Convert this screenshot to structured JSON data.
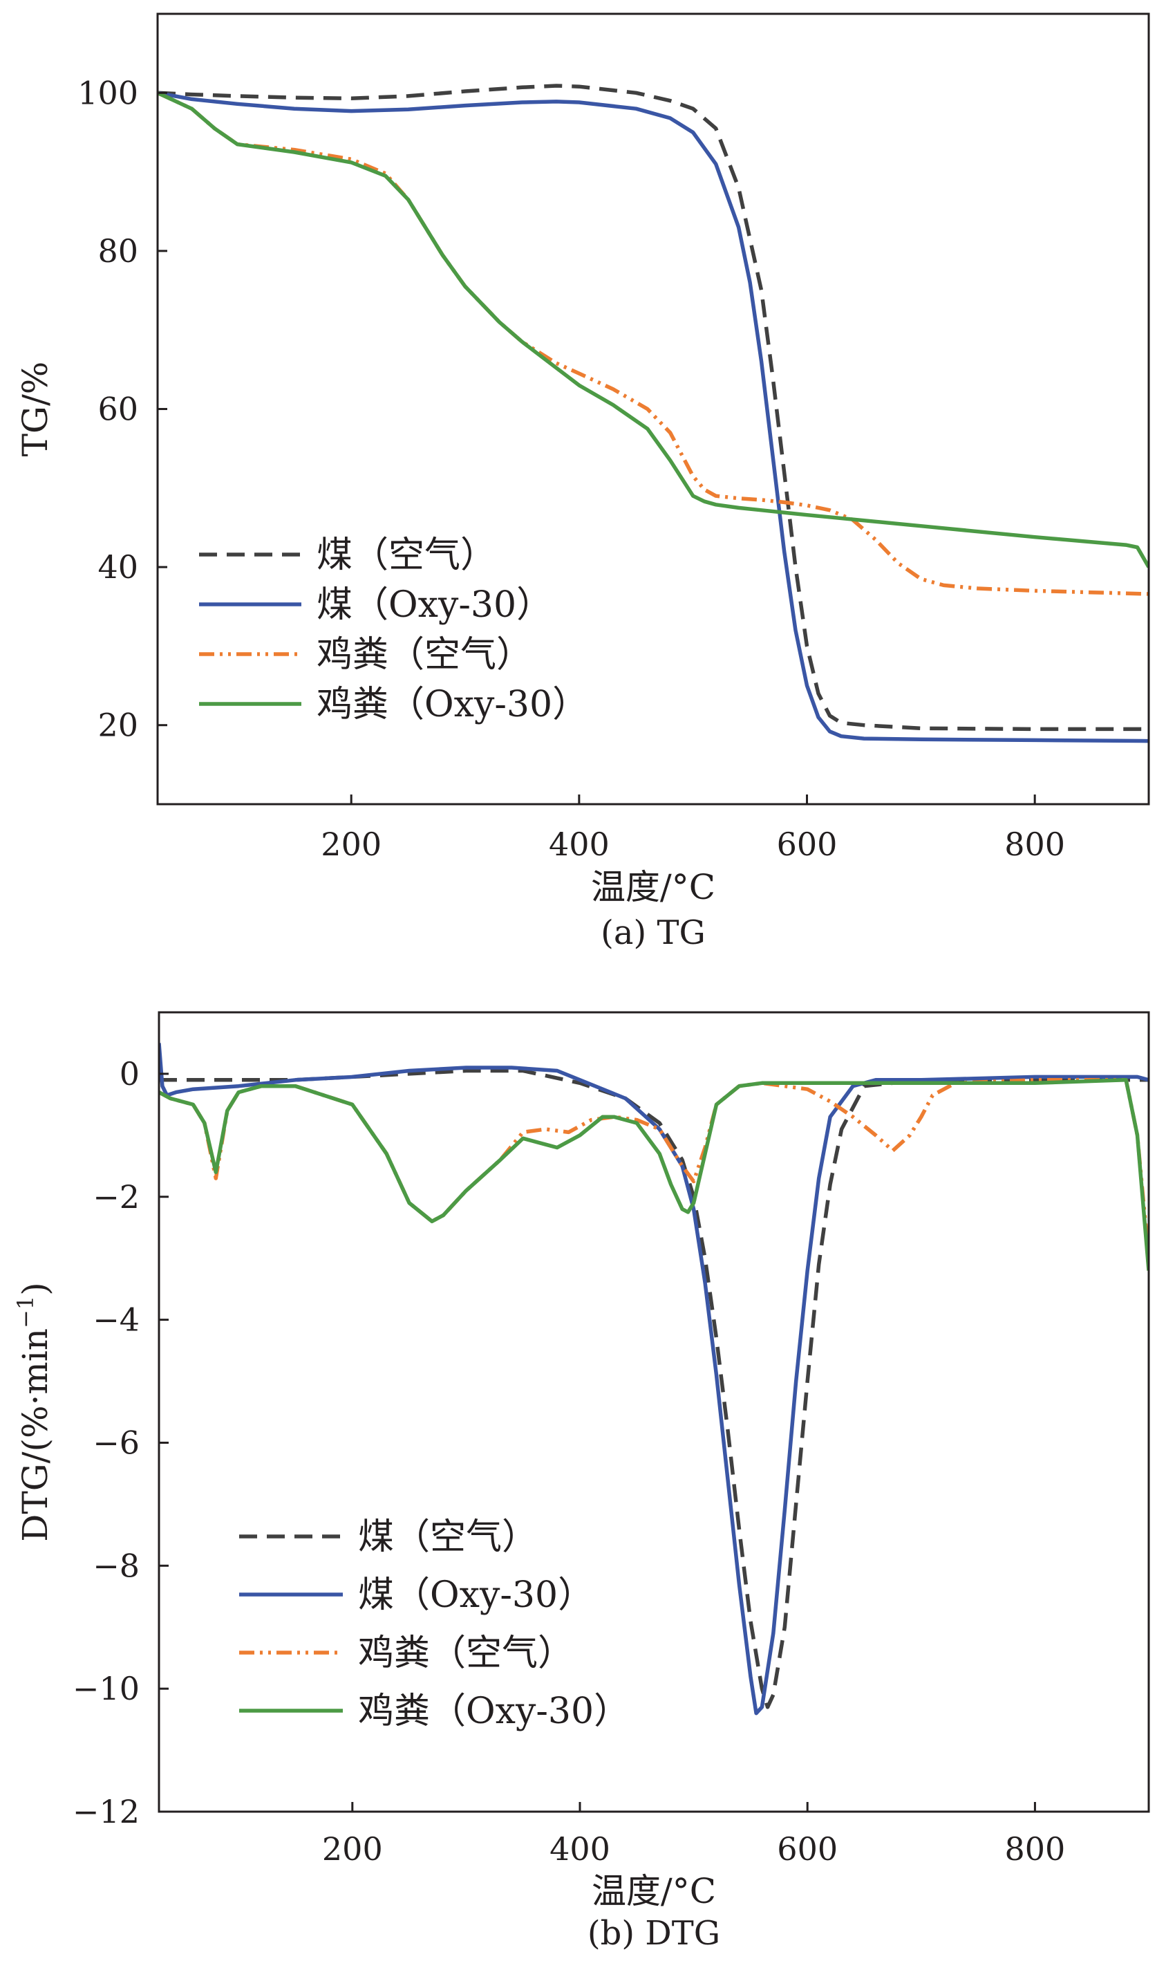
{
  "figure": {
    "panels": [
      "tg",
      "dtg"
    ]
  },
  "chart_data": [
    {
      "id": "tg",
      "type": "line",
      "caption": "(a) TG",
      "xlabel": "温度/°C",
      "ylabel": "TG/%",
      "xlim": [
        30,
        900
      ],
      "ylim": [
        10,
        110
      ],
      "xticks": [
        200,
        400,
        600,
        800
      ],
      "yticks": [
        20,
        40,
        60,
        80,
        100
      ],
      "grid": false,
      "legend_position": "bottom-left",
      "series": [
        {
          "name": "煤（空气）",
          "color": "#404040",
          "dash": "dashed",
          "x": [
            30,
            60,
            100,
            150,
            200,
            250,
            300,
            350,
            380,
            400,
            450,
            480,
            500,
            520,
            540,
            560,
            570,
            580,
            590,
            600,
            610,
            620,
            630,
            650,
            700,
            800,
            900
          ],
          "y": [
            100,
            99.8,
            99.6,
            99.4,
            99.3,
            99.6,
            100.2,
            100.7,
            100.9,
            100.8,
            100,
            99,
            98,
            95.5,
            88,
            75,
            64,
            52,
            40,
            30,
            24,
            21.2,
            20.3,
            20,
            19.6,
            19.5,
            19.5
          ]
        },
        {
          "name": "煤（Oxy-30）",
          "color": "#3a56a5",
          "dash": "solid",
          "x": [
            30,
            60,
            100,
            150,
            200,
            250,
            300,
            350,
            380,
            400,
            450,
            480,
            500,
            520,
            540,
            550,
            560,
            570,
            580,
            590,
            600,
            610,
            620,
            630,
            650,
            700,
            800,
            900
          ],
          "y": [
            100,
            99.2,
            98.6,
            98,
            97.7,
            97.9,
            98.4,
            98.8,
            98.9,
            98.8,
            98,
            96.8,
            95,
            91,
            83,
            76,
            66,
            54,
            42,
            32,
            25,
            21,
            19.2,
            18.6,
            18.3,
            18.2,
            18.1,
            18
          ]
        },
        {
          "name": "鸡粪（空气）",
          "color": "#ed7d31",
          "dash": "dashdotdot",
          "x": [
            30,
            60,
            80,
            100,
            150,
            200,
            230,
            250,
            280,
            300,
            330,
            350,
            380,
            400,
            430,
            460,
            480,
            500,
            510,
            520,
            540,
            560,
            580,
            600,
            620,
            640,
            660,
            680,
            700,
            720,
            750,
            800,
            850,
            900
          ],
          "y": [
            100,
            98,
            95.5,
            93.5,
            92.8,
            91.6,
            89.8,
            86.5,
            79.5,
            75.5,
            71,
            68.5,
            65.8,
            64.5,
            62.5,
            60,
            57,
            51.5,
            49.8,
            49,
            48.7,
            48.5,
            48.2,
            47.8,
            47.2,
            46,
            43.5,
            40.5,
            38.5,
            37.7,
            37.3,
            37,
            36.8,
            36.6
          ]
        },
        {
          "name": "鸡粪（Oxy-30）",
          "color": "#4c9a45",
          "dash": "solid",
          "x": [
            30,
            60,
            80,
            100,
            150,
            200,
            230,
            250,
            280,
            300,
            330,
            350,
            380,
            400,
            430,
            460,
            480,
            500,
            510,
            520,
            540,
            560,
            600,
            700,
            800,
            880,
            890,
            900
          ],
          "y": [
            100,
            98,
            95.5,
            93.5,
            92.5,
            91.2,
            89.5,
            86.5,
            79.5,
            75.5,
            71,
            68.5,
            65.2,
            63,
            60.5,
            57.5,
            53.5,
            49,
            48.3,
            47.9,
            47.5,
            47.2,
            46.6,
            45.2,
            43.8,
            42.8,
            42.5,
            40
          ]
        }
      ]
    },
    {
      "id": "dtg",
      "type": "line",
      "caption": "(b) DTG",
      "xlabel": "温度/°C",
      "ylabel": "DTG/(%·min",
      "ylabel_sup": "−1",
      "ylabel_end": ")",
      "xlim": [
        30,
        900
      ],
      "ylim": [
        -12,
        1
      ],
      "xticks": [
        200,
        400,
        600,
        800
      ],
      "yticks": [
        0,
        -2,
        -4,
        -6,
        -8,
        -10,
        -12
      ],
      "ytick_labels": [
        "0",
        "−2",
        "−4",
        "−6",
        "−8",
        "−10",
        "−12"
      ],
      "grid": false,
      "legend_position": "bottom-left",
      "series": [
        {
          "name": "煤（空气）",
          "color": "#404040",
          "dash": "dashed",
          "x": [
            30,
            40,
            60,
            100,
            150,
            200,
            250,
            300,
            350,
            400,
            440,
            470,
            490,
            500,
            510,
            520,
            530,
            540,
            550,
            560,
            565,
            570,
            580,
            590,
            600,
            610,
            620,
            630,
            650,
            700,
            800,
            900
          ],
          "y": [
            -0.1,
            -0.1,
            -0.1,
            -0.1,
            -0.1,
            -0.05,
            0,
            0.05,
            0.05,
            -0.15,
            -0.4,
            -0.8,
            -1.4,
            -2,
            -3,
            -4.3,
            -5.8,
            -7.4,
            -8.9,
            -10,
            -10.3,
            -10.1,
            -9,
            -7,
            -5,
            -3.1,
            -1.8,
            -0.9,
            -0.2,
            -0.1,
            -0.1,
            -0.1
          ]
        },
        {
          "name": "煤（Oxy-30）",
          "color": "#3a56a5",
          "dash": "solid",
          "x": [
            30,
            33,
            37,
            45,
            60,
            100,
            150,
            200,
            250,
            300,
            340,
            380,
            400,
            440,
            470,
            490,
            500,
            510,
            520,
            530,
            540,
            550,
            555,
            560,
            570,
            580,
            590,
            600,
            610,
            620,
            640,
            660,
            700,
            800,
            890,
            900
          ],
          "y": [
            0.5,
            -0.2,
            -0.35,
            -0.3,
            -0.25,
            -0.2,
            -0.1,
            -0.05,
            0.05,
            0.1,
            0.1,
            0.05,
            -0.1,
            -0.4,
            -0.9,
            -1.5,
            -2.2,
            -3.4,
            -4.9,
            -6.6,
            -8.3,
            -9.8,
            -10.4,
            -10.3,
            -9.1,
            -7.1,
            -5,
            -3.2,
            -1.7,
            -0.7,
            -0.2,
            -0.1,
            -0.1,
            -0.05,
            -0.05,
            -0.1
          ]
        },
        {
          "name": "鸡粪（空气）",
          "color": "#ed7d31",
          "dash": "dashdotdot",
          "x": [
            30,
            40,
            60,
            70,
            80,
            90,
            100,
            120,
            150,
            200,
            230,
            250,
            270,
            280,
            300,
            330,
            350,
            370,
            390,
            410,
            430,
            450,
            470,
            490,
            500,
            510,
            520,
            540,
            560,
            580,
            600,
            620,
            640,
            660,
            675,
            690,
            700,
            710,
            730,
            800,
            880,
            890,
            900
          ],
          "y": [
            -0.3,
            -0.4,
            -0.5,
            -0.8,
            -1.7,
            -0.6,
            -0.3,
            -0.2,
            -0.2,
            -0.5,
            -1.3,
            -2.1,
            -2.4,
            -2.3,
            -1.9,
            -1.4,
            -0.95,
            -0.9,
            -0.95,
            -0.75,
            -0.7,
            -0.75,
            -0.9,
            -1.5,
            -1.75,
            -1.2,
            -0.5,
            -0.2,
            -0.15,
            -0.2,
            -0.25,
            -0.45,
            -0.7,
            -1,
            -1.25,
            -1,
            -0.7,
            -0.35,
            -0.15,
            -0.1,
            -0.1,
            -1,
            -3
          ]
        },
        {
          "name": "鸡粪（Oxy-30）",
          "color": "#4c9a45",
          "dash": "solid",
          "x": [
            30,
            40,
            60,
            70,
            80,
            90,
            100,
            120,
            150,
            200,
            230,
            250,
            270,
            280,
            300,
            330,
            350,
            370,
            380,
            400,
            420,
            430,
            450,
            470,
            480,
            490,
            495,
            500,
            510,
            520,
            540,
            560,
            600,
            700,
            800,
            880,
            890,
            900
          ],
          "y": [
            -0.3,
            -0.4,
            -0.5,
            -0.8,
            -1.6,
            -0.6,
            -0.3,
            -0.2,
            -0.2,
            -0.5,
            -1.3,
            -2.1,
            -2.4,
            -2.3,
            -1.9,
            -1.4,
            -1.05,
            -1.15,
            -1.2,
            -1,
            -0.7,
            -0.7,
            -0.8,
            -1.3,
            -1.8,
            -2.2,
            -2.25,
            -2.1,
            -1.3,
            -0.5,
            -0.2,
            -0.15,
            -0.15,
            -0.15,
            -0.15,
            -0.1,
            -1,
            -3.2
          ]
        }
      ]
    }
  ]
}
